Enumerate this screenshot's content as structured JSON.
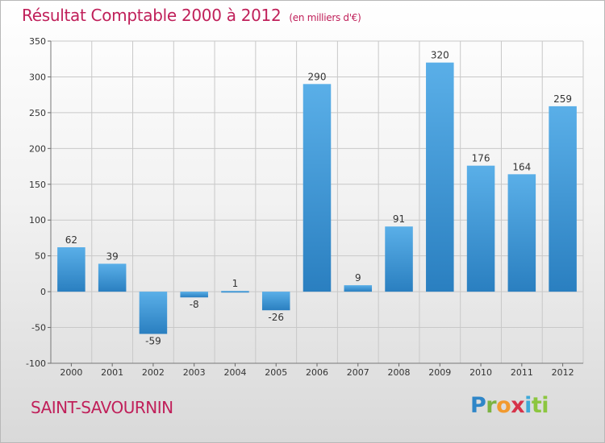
{
  "header": {
    "title": "Résultat Comptable 2000 à 2012",
    "subtitle": "(en milliers d'€)"
  },
  "footer": {
    "commune": "SAINT-SAVOURNIN",
    "logo_letters": [
      "P",
      "r",
      "o",
      "x",
      "i",
      "ti"
    ]
  },
  "colors": {
    "title": "#c0205a",
    "bar_light": "#5aafe8",
    "bar_dark": "#2a7fc0",
    "grid": "#c8c8c8"
  },
  "chart_data": {
    "type": "bar",
    "title": "Résultat Comptable 2000 à 2012",
    "units": "milliers d'€",
    "xlabel": "",
    "ylabel": "",
    "categories": [
      "2000",
      "2001",
      "2002",
      "2003",
      "2004",
      "2005",
      "2006",
      "2007",
      "2008",
      "2009",
      "2010",
      "2011",
      "2012"
    ],
    "values": [
      62,
      39,
      -59,
      -8,
      1,
      -26,
      290,
      9,
      91,
      320,
      176,
      164,
      259
    ],
    "ylim": [
      -100,
      350
    ],
    "yticks": [
      -100,
      -50,
      0,
      50,
      100,
      150,
      200,
      250,
      300,
      350
    ],
    "grid": true
  }
}
